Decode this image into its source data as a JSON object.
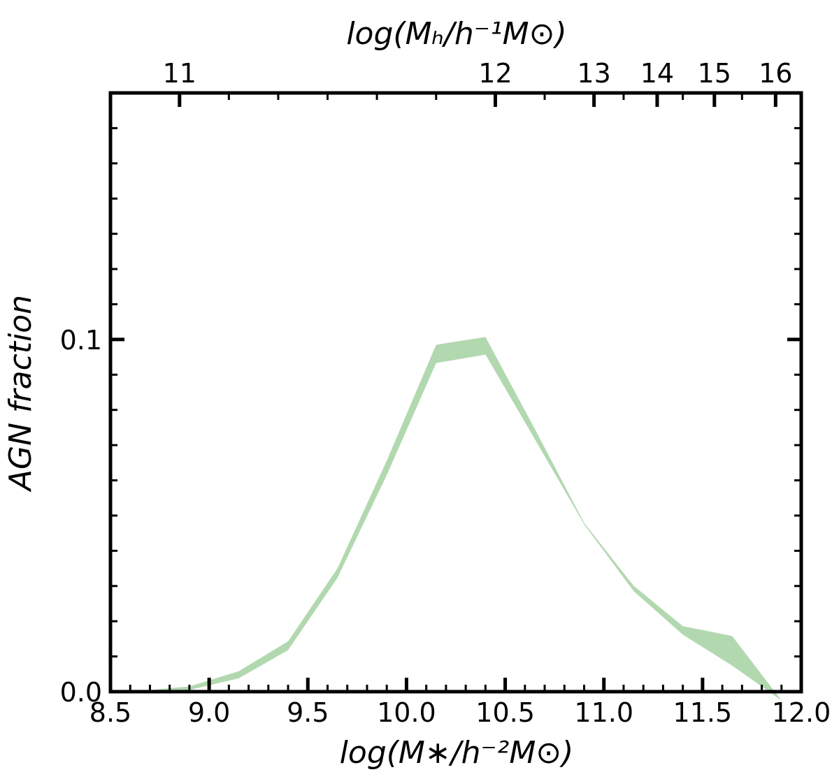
{
  "chart_data": {
    "type": "area",
    "xlabel": "log(M∗/h⁻²M⊙)",
    "x2label": "log(Mₕ/h⁻¹M⊙)",
    "ylabel": "AGN fraction",
    "xlim": [
      8.5,
      12.0
    ],
    "ylim": [
      0.0,
      0.17
    ],
    "x_ticks": [
      "8.5",
      "9.0",
      "9.5",
      "10.0",
      "10.5",
      "11.0",
      "11.5",
      "12.0"
    ],
    "x_tick_values": [
      8.5,
      9.0,
      9.5,
      10.0,
      10.5,
      11.0,
      11.5,
      12.0
    ],
    "y_ticks": [
      "0.0",
      "0.1"
    ],
    "y_tick_values": [
      0.0,
      0.1
    ],
    "x2_ticks": [
      "11",
      "12",
      "13",
      "14",
      "15",
      "16"
    ],
    "x2_tick_positions_in_x_units": [
      8.85,
      10.45,
      10.95,
      11.27,
      11.56,
      11.87
    ],
    "band_color": "#b2d8b0",
    "series": [
      {
        "x": [
          8.65,
          8.9,
          9.15,
          9.4,
          9.65,
          9.9,
          10.15,
          10.4,
          10.65,
          10.9,
          11.15,
          11.4,
          11.65,
          11.9
        ],
        "lower": [
          0.0,
          0.0005,
          0.0038,
          0.0118,
          0.0323,
          0.0615,
          0.0933,
          0.0957,
          0.0717,
          0.0475,
          0.0286,
          0.0162,
          0.0074,
          -0.0025
        ],
        "upper": [
          0.0002,
          0.0015,
          0.0058,
          0.0143,
          0.035,
          0.0656,
          0.0985,
          0.1007,
          0.0746,
          0.0479,
          0.0301,
          0.0186,
          0.0158,
          -0.0025
        ]
      }
    ]
  }
}
